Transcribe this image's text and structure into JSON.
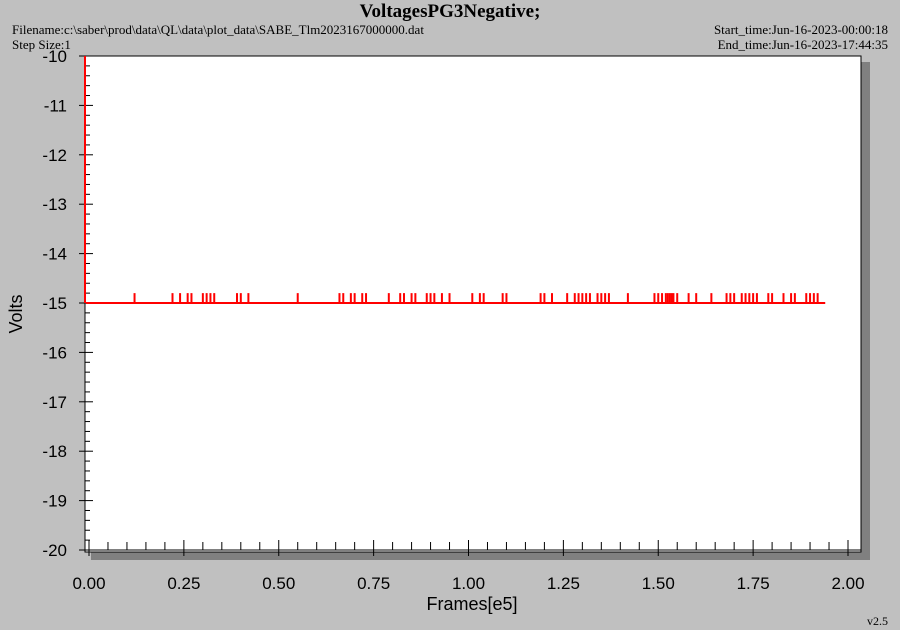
{
  "header": {
    "title": "VoltagesPG3Negative;",
    "filename": "Filename:c:\\saber\\prod\\data\\QL\\data\\plot_data\\SABE_Tlm2023167000000.dat",
    "step_size": "Step Size:1",
    "start_time": "Start_time:Jun-16-2023-00:00:18",
    "end_time": "End_time:Jun-16-2023-17:44:35"
  },
  "footer": {
    "version": "v2.5"
  },
  "colors": {
    "background": "#c0c0c0",
    "plot_background": "#ffffff",
    "series": "#ff0000",
    "shadow": "#808080"
  },
  "chart_data": {
    "type": "line",
    "title": "VoltagesPG3Negative;",
    "xlabel": "Frames[e5]",
    "ylabel": "Volts",
    "xlim": [
      0,
      2.0
    ],
    "ylim": [
      -20,
      -10
    ],
    "x_ticks": [
      0.0,
      0.25,
      0.5,
      0.75,
      1.0,
      1.25,
      1.5,
      1.75,
      2.0
    ],
    "x_tick_labels": [
      "0.00",
      "0.25",
      "0.50",
      "0.75",
      "1.00",
      "1.25",
      "1.50",
      "1.75",
      "2.00"
    ],
    "y_ticks": [
      -10,
      -11,
      -12,
      -13,
      -14,
      -15,
      -16,
      -17,
      -18,
      -19,
      -20
    ],
    "y_tick_labels": [
      "-10",
      "-11",
      "-12",
      "-13",
      "-14",
      "-15",
      "-16",
      "-17",
      "-18",
      "-19",
      "-20"
    ],
    "grid": false,
    "legend": "none",
    "series": [
      {
        "baseline": -15.0,
        "x_range": [
          0,
          1.94
        ],
        "spike_value": -14.8,
        "spike_x": [
          0.12,
          0.22,
          0.24,
          0.26,
          0.27,
          0.3,
          0.31,
          0.32,
          0.33,
          0.39,
          0.4,
          0.42,
          0.55,
          0.66,
          0.67,
          0.69,
          0.7,
          0.72,
          0.73,
          0.79,
          0.82,
          0.83,
          0.85,
          0.86,
          0.89,
          0.9,
          0.91,
          0.93,
          0.95,
          1.01,
          1.03,
          1.04,
          1.09,
          1.1,
          1.19,
          1.2,
          1.22,
          1.26,
          1.28,
          1.29,
          1.3,
          1.31,
          1.32,
          1.34,
          1.35,
          1.36,
          1.37,
          1.42,
          1.49,
          1.5,
          1.51,
          1.52,
          1.525,
          1.53,
          1.535,
          1.54,
          1.55,
          1.58,
          1.6,
          1.64,
          1.68,
          1.69,
          1.7,
          1.72,
          1.73,
          1.74,
          1.75,
          1.76,
          1.79,
          1.8,
          1.83,
          1.85,
          1.86,
          1.89,
          1.9,
          1.91,
          1.92
        ]
      }
    ]
  }
}
